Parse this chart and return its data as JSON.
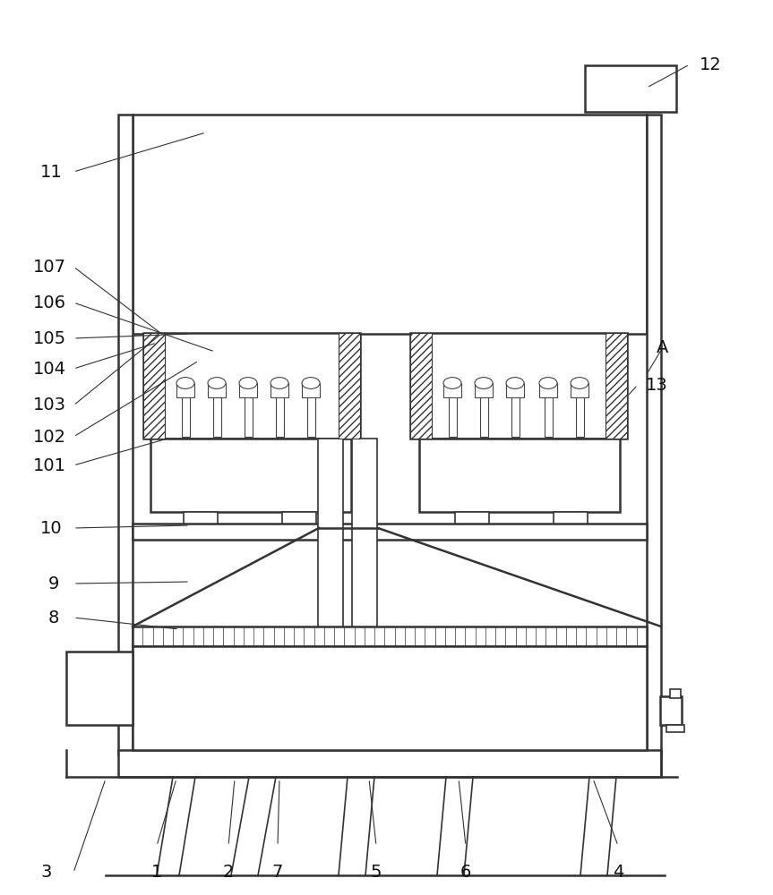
{
  "bg_color": "#ffffff",
  "line_color": "#333333",
  "fig_width": 8.63,
  "fig_height": 10.0,
  "annotations": [
    [
      "1",
      175,
      975
    ],
    [
      "2",
      255,
      975
    ],
    [
      "3",
      52,
      975
    ],
    [
      "4",
      690,
      975
    ],
    [
      "5",
      420,
      975
    ],
    [
      "6",
      520,
      975
    ],
    [
      "7",
      310,
      975
    ],
    [
      "8",
      60,
      690
    ],
    [
      "9",
      60,
      652
    ],
    [
      "10",
      57,
      590
    ],
    [
      "11",
      57,
      192
    ],
    [
      "12",
      793,
      72
    ],
    [
      "13",
      733,
      430
    ],
    [
      "A",
      740,
      388
    ],
    [
      "101",
      55,
      520
    ],
    [
      "102",
      55,
      488
    ],
    [
      "103",
      55,
      453
    ],
    [
      "104",
      55,
      412
    ],
    [
      "105",
      55,
      378
    ],
    [
      "106",
      55,
      338
    ],
    [
      "107",
      55,
      298
    ]
  ],
  "leader_lines": [
    [
      82,
      192,
      230,
      148
    ],
    [
      82,
      298,
      183,
      375
    ],
    [
      82,
      338,
      240,
      393
    ],
    [
      82,
      378,
      212,
      373
    ],
    [
      82,
      412,
      175,
      383
    ],
    [
      82,
      453,
      180,
      373
    ],
    [
      82,
      488,
      222,
      403
    ],
    [
      82,
      520,
      187,
      490
    ],
    [
      82,
      590,
      212,
      587
    ],
    [
      82,
      652,
      212,
      650
    ],
    [
      82,
      690,
      200,
      703
    ],
    [
      82,
      975,
      118,
      870
    ],
    [
      175,
      945,
      197,
      870
    ],
    [
      255,
      945,
      262,
      870
    ],
    [
      310,
      945,
      312,
      870
    ],
    [
      420,
      945,
      412,
      870
    ],
    [
      520,
      945,
      512,
      870
    ],
    [
      690,
      945,
      662,
      870
    ],
    [
      770,
      72,
      722,
      98
    ],
    [
      740,
      388,
      722,
      418
    ],
    [
      712,
      430,
      700,
      443
    ]
  ]
}
